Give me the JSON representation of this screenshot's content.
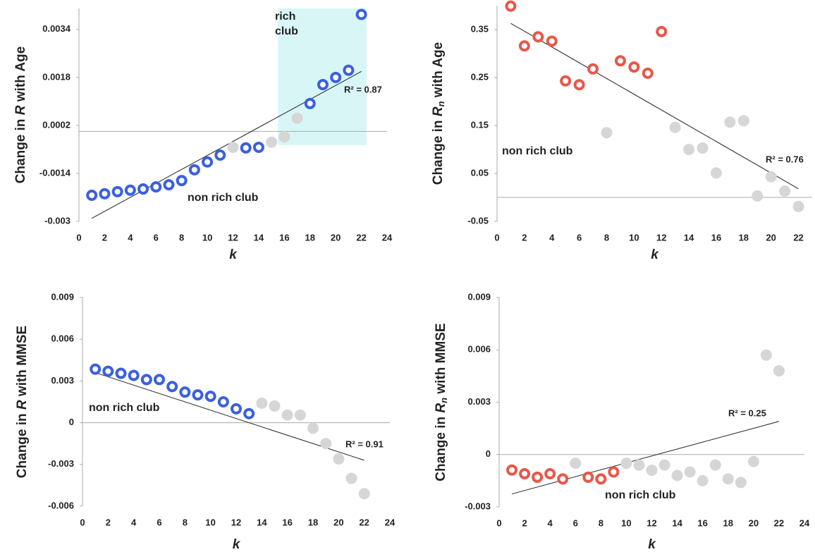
{
  "chart_data": [
    {
      "type": "scatter",
      "ylabel": {
        "prefix": "Change in ",
        "var": "R",
        "suffix": " with Age"
      },
      "xlabel": "k",
      "x": [
        1,
        2,
        3,
        4,
        5,
        6,
        7,
        8,
        9,
        10,
        11,
        12,
        13,
        14,
        15,
        16,
        17,
        18,
        19,
        20,
        21,
        22
      ],
      "values": [
        -0.00213,
        -0.00208,
        -0.00201,
        -0.00196,
        -0.00192,
        -0.00185,
        -0.00178,
        -0.00164,
        -0.00128,
        -0.00102,
        -0.00079,
        -0.00053,
        -0.00055,
        -0.00053,
        -0.00036,
        -0.00018,
        0.00044,
        0.00093,
        0.00156,
        0.0018,
        0.00204,
        0.0039
      ],
      "colors": [
        "#3a5fe0",
        "#3a5fe0",
        "#3a5fe0",
        "#3a5fe0",
        "#3a5fe0",
        "#3a5fe0",
        "#3a5fe0",
        "#3a5fe0",
        "#3a5fe0",
        "#3a5fe0",
        "#3a5fe0",
        "#d6d6d6",
        "#3a5fe0",
        "#3a5fe0",
        "#d6d6d6",
        "#d6d6d6",
        "#d6d6d6",
        "#3a5fe0",
        "#3a5fe0",
        "#3a5fe0",
        "#3a5fe0",
        "#3a5fe0"
      ],
      "xlim": [
        0,
        24
      ],
      "ylim": [
        -0.003,
        0.0041
      ],
      "xticks": [
        0,
        2,
        4,
        6,
        8,
        10,
        12,
        14,
        16,
        18,
        20,
        22,
        24
      ],
      "yticks": [
        -0.003,
        -0.0014,
        0.0002,
        0.0018,
        0.0034
      ],
      "hline": 0,
      "trendline": {
        "x": [
          1,
          22
        ],
        "y": [
          -0.0029,
          0.002
        ]
      },
      "regions": [
        {
          "x": [
            15.5,
            22.4
          ],
          "y": [
            -0.00046,
            0.0041
          ],
          "color": "#d8f6f6"
        }
      ],
      "annotations": [
        "rich",
        "club",
        "non rich club",
        "R² = 0.87"
      ]
    },
    {
      "type": "scatter",
      "ylabel": {
        "prefix": "Change in ",
        "var": "R",
        "sub": "n",
        "suffix": " with Age"
      },
      "xlabel": "k",
      "x": [
        1,
        2,
        3,
        4,
        5,
        6,
        7,
        8,
        9,
        10,
        11,
        12,
        13,
        14,
        15,
        16,
        17,
        18,
        19,
        20,
        21,
        22
      ],
      "values": [
        0.399,
        0.316,
        0.335,
        0.326,
        0.243,
        0.235,
        0.268,
        0.135,
        0.285,
        0.272,
        0.259,
        0.346,
        0.146,
        0.1,
        0.103,
        0.051,
        0.157,
        0.16,
        0.003,
        0.043,
        0.013,
        -0.019
      ],
      "colors": [
        "#e8574a",
        "#e8574a",
        "#e8574a",
        "#e8574a",
        "#e8574a",
        "#e8574a",
        "#e8574a",
        "#d6d6d6",
        "#e8574a",
        "#e8574a",
        "#e8574a",
        "#e8574a",
        "#d6d6d6",
        "#d6d6d6",
        "#d6d6d6",
        "#d6d6d6",
        "#d6d6d6",
        "#d6d6d6",
        "#d6d6d6",
        "#d6d6d6",
        "#d6d6d6",
        "#d6d6d6"
      ],
      "xlim": [
        0,
        23
      ],
      "ylim": [
        -0.05,
        0.4
      ],
      "xticks": [
        0,
        2,
        4,
        6,
        8,
        10,
        12,
        14,
        16,
        18,
        20,
        22
      ],
      "yticks": [
        -0.05,
        0.05,
        0.15,
        0.25,
        0.35
      ],
      "hline": 0,
      "trendline": {
        "x": [
          1,
          22
        ],
        "y": [
          0.363,
          0.018
        ]
      },
      "annotations": [
        "non rich club",
        "R² = 0.76"
      ]
    },
    {
      "type": "scatter",
      "ylabel": {
        "prefix": "Change in ",
        "var": "R",
        "suffix": " with MMSE"
      },
      "xlabel": "k",
      "x": [
        1,
        2,
        3,
        4,
        5,
        6,
        7,
        8,
        9,
        10,
        11,
        12,
        13,
        14,
        15,
        16,
        17,
        18,
        19,
        20,
        21,
        22
      ],
      "values": [
        0.00385,
        0.0037,
        0.00355,
        0.0034,
        0.0031,
        0.0031,
        0.0026,
        0.0022,
        0.002,
        0.0019,
        0.0015,
        0.001,
        0.00065,
        0.0014,
        0.0012,
        0.00055,
        0.00055,
        -0.0004,
        -0.0015,
        -0.0026,
        -0.004,
        -0.0051
      ],
      "colors": [
        "#3a5fe0",
        "#3a5fe0",
        "#3a5fe0",
        "#3a5fe0",
        "#3a5fe0",
        "#3a5fe0",
        "#3a5fe0",
        "#3a5fe0",
        "#3a5fe0",
        "#3a5fe0",
        "#3a5fe0",
        "#3a5fe0",
        "#3a5fe0",
        "#d6d6d6",
        "#d6d6d6",
        "#d6d6d6",
        "#d6d6d6",
        "#d6d6d6",
        "#d6d6d6",
        "#d6d6d6",
        "#d6d6d6",
        "#d6d6d6"
      ],
      "xlim": [
        0,
        24
      ],
      "ylim": [
        -0.006,
        0.009
      ],
      "xticks": [
        0,
        2,
        4,
        6,
        8,
        10,
        12,
        14,
        16,
        18,
        20,
        22,
        24
      ],
      "yticks": [
        -0.006,
        -0.003,
        0,
        0.003,
        0.006,
        0.009
      ],
      "hline": 0,
      "trendline": {
        "x": [
          1,
          22
        ],
        "y": [
          0.0036,
          -0.0027
        ]
      },
      "annotations": [
        "non rich club",
        "R² = 0.91"
      ]
    },
    {
      "type": "scatter",
      "ylabel": {
        "prefix": "Change in ",
        "var": "R",
        "sub": "n",
        "suffix": " with MMSE"
      },
      "xlabel": "k",
      "x": [
        1,
        2,
        3,
        4,
        5,
        6,
        7,
        8,
        9,
        10,
        11,
        12,
        13,
        14,
        15,
        16,
        17,
        18,
        19,
        20,
        21,
        22
      ],
      "values": [
        -0.00089,
        -0.0011,
        -0.0013,
        -0.0011,
        -0.0014,
        -0.0005,
        -0.0013,
        -0.0014,
        -0.001,
        -0.0005,
        -0.0006,
        -0.0009,
        -0.0006,
        -0.0012,
        -0.001,
        -0.0015,
        -0.0006,
        -0.0014,
        -0.0016,
        -0.0004,
        0.0057,
        0.0048
      ],
      "colors": [
        "#e8574a",
        "#e8574a",
        "#e8574a",
        "#e8574a",
        "#e8574a",
        "#d6d6d6",
        "#e8574a",
        "#e8574a",
        "#e8574a",
        "#d6d6d6",
        "#d6d6d6",
        "#d6d6d6",
        "#d6d6d6",
        "#d6d6d6",
        "#d6d6d6",
        "#d6d6d6",
        "#d6d6d6",
        "#d6d6d6",
        "#d6d6d6",
        "#d6d6d6",
        "#d6d6d6",
        "#d6d6d6"
      ],
      "xlim": [
        0,
        24
      ],
      "ylim": [
        -0.003,
        0.009
      ],
      "xticks": [
        0,
        2,
        4,
        6,
        8,
        10,
        12,
        14,
        16,
        18,
        20,
        22,
        24
      ],
      "yticks": [
        -0.003,
        0,
        0.003,
        0.006,
        0.009
      ],
      "hline": 0,
      "trendline": {
        "x": [
          1,
          22
        ],
        "y": [
          -0.00226,
          0.0019
        ]
      },
      "annotations": [
        "R² = 0.25",
        "non rich club"
      ]
    }
  ]
}
